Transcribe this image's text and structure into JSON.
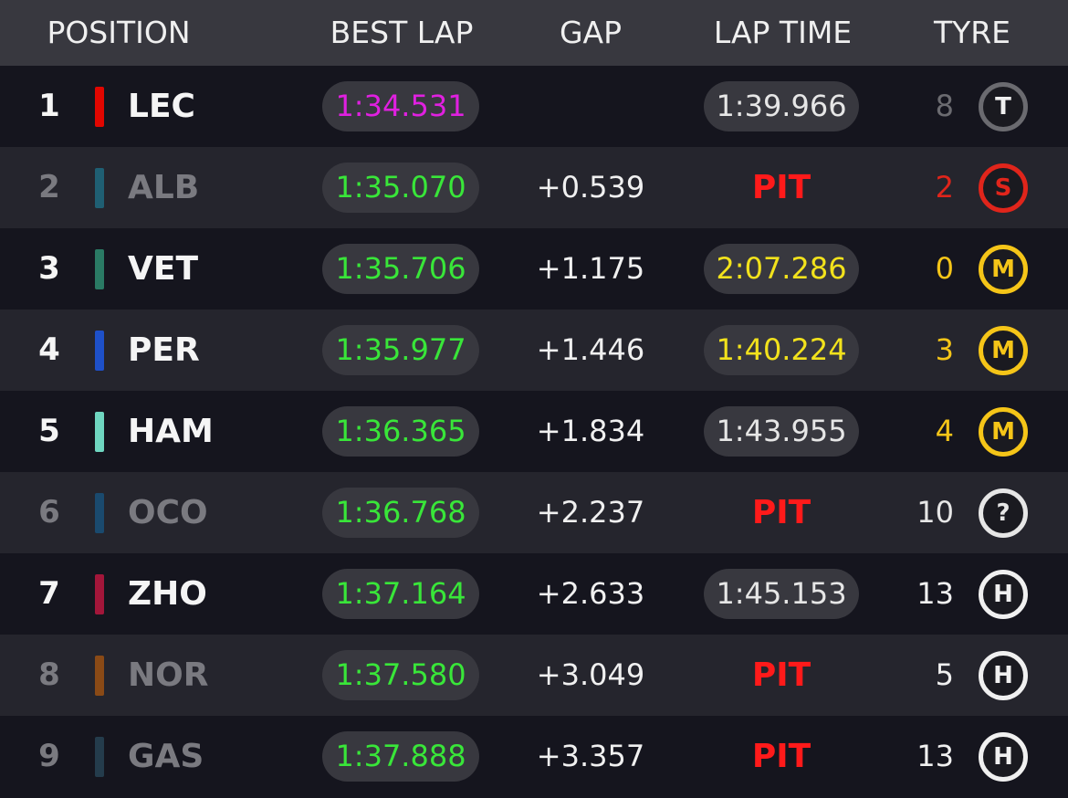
{
  "header": {
    "columns": [
      "POSITION",
      "BEST LAP",
      "GAP",
      "LAP TIME",
      "TYRE"
    ]
  },
  "rows": [
    {
      "position": "1",
      "code": "LEC",
      "team_color": "#e10600",
      "dimmed": false,
      "best_lap": "1:34.531",
      "best_lap_color": "#e020e0",
      "lap_time": "1:39.966",
      "lap_time_color": "#e6e6e6",
      "tyre_age": "8",
      "tyre": "T",
      "tyre_color": "#6b6b70"
    },
    {
      "position": "2",
      "code": "ALB",
      "team_color": "#1f5f73",
      "dimmed": true,
      "best_lap": "1:35.070",
      "best_lap_color": "#39e639",
      "gap": "+0.539",
      "lap_time": "PIT",
      "lap_time_color": "#ff1a1a",
      "tyre_age": "2",
      "tyre": "S",
      "tyre_color": "#e0251b"
    },
    {
      "position": "3",
      "code": "VET",
      "team_color": "#2a7a64",
      "dimmed": false,
      "best_lap": "1:35.706",
      "best_lap_color": "#39e639",
      "gap": "+1.175",
      "lap_time": "2:07.286",
      "lap_time_color": "#f2e21c",
      "tyre_age": "0",
      "tyre": "M",
      "tyre_color": "#f5c518"
    },
    {
      "position": "4",
      "code": "PER",
      "team_color": "#1e50c8",
      "dimmed": false,
      "best_lap": "1:35.977",
      "best_lap_color": "#39e639",
      "gap": "+1.446",
      "lap_time": "1:40.224",
      "lap_time_color": "#f2e21c",
      "tyre_age": "3",
      "tyre": "M",
      "tyre_color": "#f5c518"
    },
    {
      "position": "5",
      "code": "HAM",
      "team_color": "#6fd6c0",
      "dimmed": false,
      "best_lap": "1:36.365",
      "best_lap_color": "#39e639",
      "gap": "+1.834",
      "lap_time": "1:43.955",
      "lap_time_color": "#e6e6e6",
      "tyre_age": "4",
      "tyre": "M",
      "tyre_color": "#f5c518"
    },
    {
      "position": "6",
      "code": "OCO",
      "team_color": "#1a4a6e",
      "dimmed": true,
      "best_lap": "1:36.768",
      "best_lap_color": "#39e639",
      "gap": "+2.237",
      "lap_time": "PIT",
      "lap_time_color": "#ff1a1a",
      "tyre_age": "10",
      "tyre": "?",
      "tyre_color": "#e6e6e6"
    },
    {
      "position": "7",
      "code": "ZHO",
      "team_color": "#a3163a",
      "dimmed": false,
      "best_lap": "1:37.164",
      "best_lap_color": "#39e639",
      "gap": "+2.633",
      "lap_time": "1:45.153",
      "lap_time_color": "#e6e6e6",
      "tyre_age": "13",
      "tyre": "H",
      "tyre_color": "#f0f0f0"
    },
    {
      "position": "8",
      "code": "NOR",
      "team_color": "#8a4a16",
      "dimmed": true,
      "best_lap": "1:37.580",
      "best_lap_color": "#39e639",
      "gap": "+3.049",
      "lap_time": "PIT",
      "lap_time_color": "#ff1a1a",
      "tyre_age": "5",
      "tyre": "H",
      "tyre_color": "#f0f0f0"
    },
    {
      "position": "9",
      "code": "GAS",
      "team_color": "#243c4c",
      "dimmed": true,
      "best_lap": "1:37.888",
      "best_lap_color": "#39e639",
      "gap": "+3.357",
      "lap_time": "PIT",
      "lap_time_color": "#ff1a1a",
      "tyre_age": "13",
      "tyre": "H",
      "tyre_color": "#f0f0f0"
    }
  ]
}
